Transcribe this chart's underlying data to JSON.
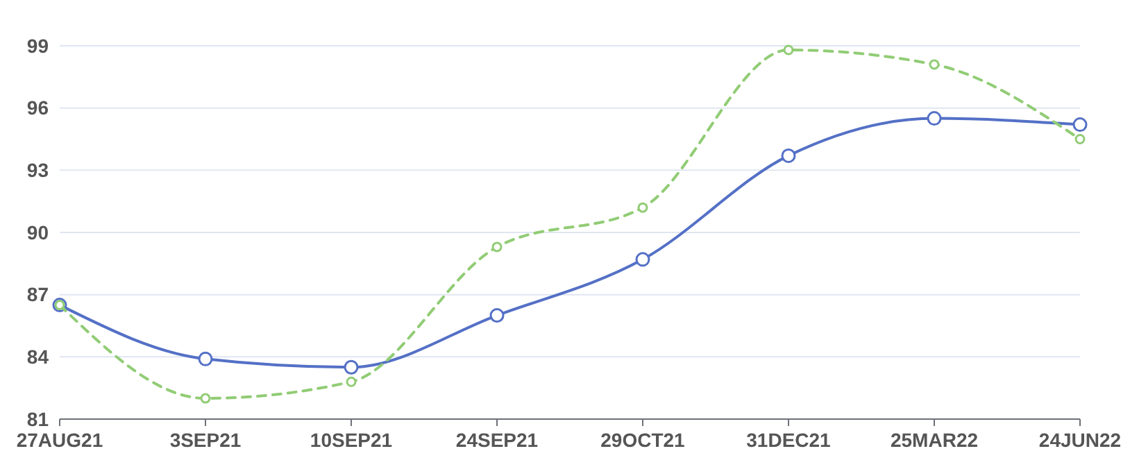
{
  "chart_data": {
    "type": "line",
    "categories": [
      "27AUG21",
      "3SEP21",
      "10SEP21",
      "24SEP21",
      "29OCT21",
      "31DEC21",
      "25MAR22",
      "24JUN22"
    ],
    "series": [
      {
        "color": "#5470c6",
        "line_style": "solid",
        "values": [
          86.5,
          83.9,
          83.5,
          86.0,
          88.7,
          93.7,
          95.5,
          95.2
        ]
      },
      {
        "color": "#91cc75",
        "line_style": "dashed",
        "values": [
          86.5,
          82.0,
          82.8,
          89.3,
          91.2,
          98.8,
          98.1,
          94.5
        ]
      }
    ],
    "ylim": [
      81,
      99
    ],
    "yticks": [
      81,
      84,
      87,
      90,
      93,
      96,
      99
    ],
    "grid": "y",
    "marker": "circle"
  }
}
